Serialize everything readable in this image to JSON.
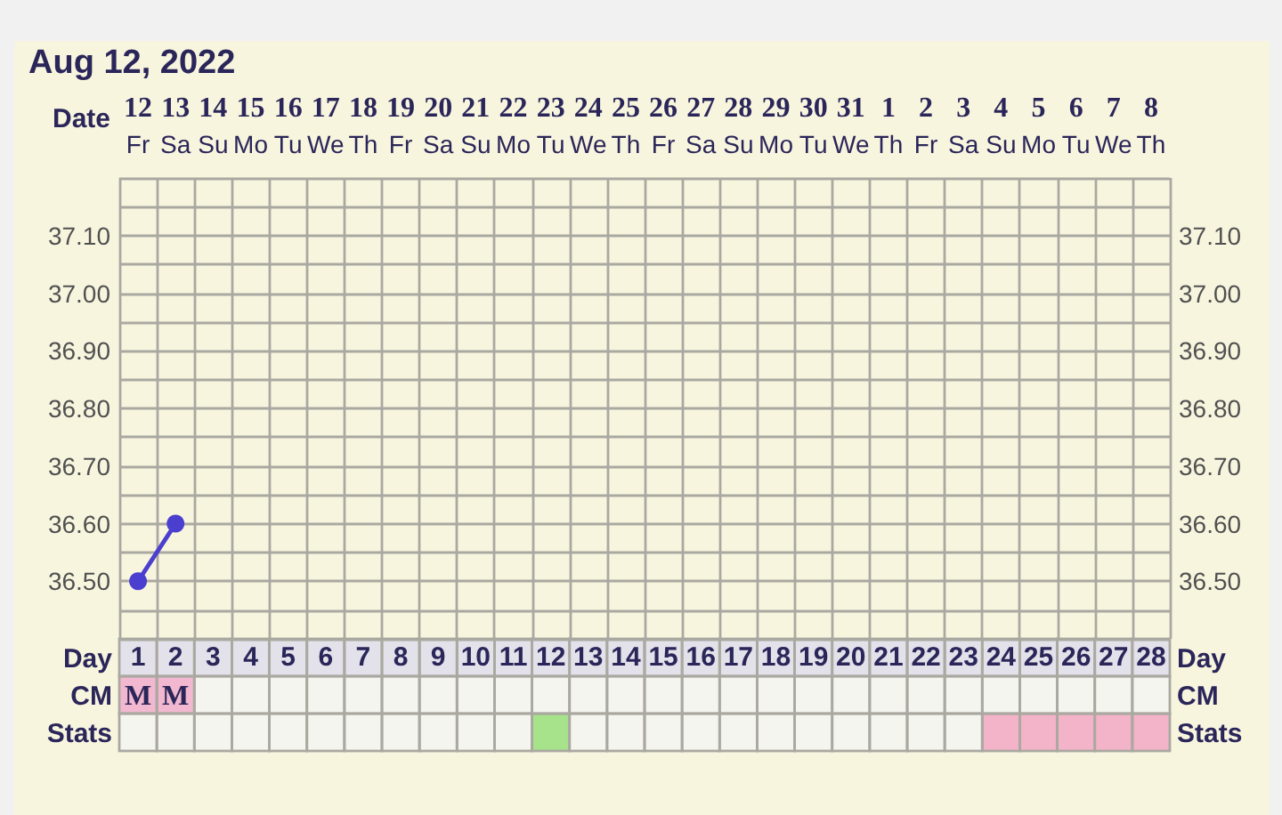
{
  "chart_data": {
    "type": "line",
    "title": "Aug 12, 2022",
    "xlabel": "Day",
    "x2label": "Date",
    "x": [
      1,
      2
    ],
    "values": [
      36.5,
      36.6
    ],
    "color": "#4b3fcf",
    "xlim": [
      0.5,
      28.5
    ],
    "xticks": [
      1,
      2,
      3,
      4,
      5,
      6,
      7,
      8,
      9,
      10,
      11,
      12,
      13,
      14,
      15,
      16,
      17,
      18,
      19,
      20,
      21,
      22,
      23,
      24,
      25,
      26,
      27,
      28
    ],
    "x2lim": [
      "2022-08-11T12:00",
      "2022-09-08T12:00"
    ],
    "x2ticks": [
      {
        "value": "2022-08-12",
        "label": "12\nFr"
      },
      {
        "value": "2022-08-13",
        "label": "13\nSa"
      },
      {
        "value": "2022-08-14",
        "label": "14\nSu"
      },
      {
        "value": "2022-08-15",
        "label": "15\nMo"
      },
      {
        "value": "2022-08-16",
        "label": "16\nTu"
      },
      {
        "value": "2022-08-17",
        "label": "17\nWe"
      },
      {
        "value": "2022-08-18",
        "label": "18\nTh"
      },
      {
        "value": "2022-08-19",
        "label": "19\nFr"
      },
      {
        "value": "2022-08-20",
        "label": "20\nSa"
      },
      {
        "value": "2022-08-21",
        "label": "21\nSu"
      },
      {
        "value": "2022-08-22",
        "label": "22\nMo"
      },
      {
        "value": "2022-08-23",
        "label": "23\nTu"
      },
      {
        "value": "2022-08-24",
        "label": "24\nWe"
      },
      {
        "value": "2022-08-25",
        "label": "25\nTh"
      },
      {
        "value": "2022-08-26",
        "label": "26\nFr"
      },
      {
        "value": "2022-08-27",
        "label": "27\nSa"
      },
      {
        "value": "2022-08-28",
        "label": "28\nSu"
      },
      {
        "value": "2022-08-29",
        "label": "29\nMo"
      },
      {
        "value": "2022-08-30",
        "label": "30\nTu"
      },
      {
        "value": "2022-08-31",
        "label": "31\nWe"
      },
      {
        "value": "2022-09-01",
        "label": "1\nTh"
      },
      {
        "value": "2022-09-02",
        "label": "2\nFr"
      },
      {
        "value": "2022-09-03",
        "label": "3\nSa"
      },
      {
        "value": "2022-09-04",
        "label": "4\nSu"
      },
      {
        "value": "2022-09-05",
        "label": "5\nMo"
      },
      {
        "value": "2022-09-06",
        "label": "6\nTu"
      },
      {
        "value": "2022-09-07",
        "label": "7\nWe"
      },
      {
        "value": "2022-09-08",
        "label": "8\nTh"
      }
    ],
    "ylim": [
      36.4,
      37.2
    ],
    "yticks": [
      {
        "value": 36.4,
        "label": null
      },
      {
        "value": 36.45,
        "label": null
      },
      {
        "value": 36.5,
        "label": "36.50"
      },
      {
        "value": 36.55,
        "label": null
      },
      {
        "value": 36.6,
        "label": "36.60"
      },
      {
        "value": 36.65,
        "label": null
      },
      {
        "value": 36.7,
        "label": "36.70"
      },
      {
        "value": 36.75,
        "label": null
      },
      {
        "value": 36.8,
        "label": "36.80"
      },
      {
        "value": 36.85,
        "label": null
      },
      {
        "value": 36.9,
        "label": "36.90"
      },
      {
        "value": 36.95,
        "label": null
      },
      {
        "value": 37.0,
        "label": "37.00"
      },
      {
        "value": 37.05,
        "label": null
      },
      {
        "value": 37.1,
        "label": "37.10"
      },
      {
        "value": 37.15,
        "label": null
      },
      {
        "value": 37.2,
        "label": null
      }
    ],
    "y2lim": [
      36.4,
      37.2
    ],
    "y2ticks": [
      {
        "value": 36.4,
        "label": null
      },
      {
        "value": 36.45,
        "label": null
      },
      {
        "value": 36.5,
        "label": "36.50"
      },
      {
        "value": 36.55,
        "label": null
      },
      {
        "value": 36.6,
        "label": "36.60"
      },
      {
        "value": 36.65,
        "label": null
      },
      {
        "value": 36.7,
        "label": "36.70"
      },
      {
        "value": 36.75,
        "label": null
      },
      {
        "value": 36.8,
        "label": "36.80"
      },
      {
        "value": 36.85,
        "label": null
      },
      {
        "value": 36.9,
        "label": "36.90"
      },
      {
        "value": 36.95,
        "label": null
      },
      {
        "value": 37.0,
        "label": "37.00"
      },
      {
        "value": 37.05,
        "label": null
      },
      {
        "value": 37.1,
        "label": "37.10"
      },
      {
        "value": 37.15,
        "label": null
      },
      {
        "value": 37.2,
        "label": null
      }
    ],
    "annotations": [
      "CM",
      "Stats",
      "M",
      "M"
    ],
    "grid": true,
    "marker": "circle",
    "line_style": "solid"
  }
}
